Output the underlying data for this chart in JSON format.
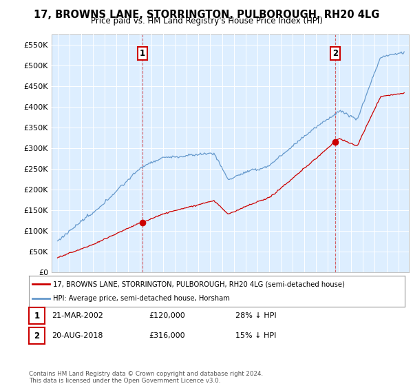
{
  "title": "17, BROWNS LANE, STORRINGTON, PULBOROUGH, RH20 4LG",
  "subtitle": "Price paid vs. HM Land Registry's House Price Index (HPI)",
  "legend_line1": "17, BROWNS LANE, STORRINGTON, PULBOROUGH, RH20 4LG (semi-detached house)",
  "legend_line2": "HPI: Average price, semi-detached house, Horsham",
  "annotation1_date": "21-MAR-2002",
  "annotation1_price": "£120,000",
  "annotation1_note": "28% ↓ HPI",
  "annotation2_date": "20-AUG-2018",
  "annotation2_price": "£316,000",
  "annotation2_note": "15% ↓ HPI",
  "footer": "Contains HM Land Registry data © Crown copyright and database right 2024.\nThis data is licensed under the Open Government Licence v3.0.",
  "red_color": "#cc0000",
  "blue_color": "#6699cc",
  "plot_bg_color": "#ddeeff",
  "background_color": "#ffffff",
  "grid_color": "#ffffff",
  "ylim": [
    0,
    575000
  ],
  "yticks": [
    0,
    50000,
    100000,
    150000,
    200000,
    250000,
    300000,
    350000,
    400000,
    450000,
    500000,
    550000
  ],
  "ytick_labels": [
    "£0",
    "£50K",
    "£100K",
    "£150K",
    "£200K",
    "£250K",
    "£300K",
    "£350K",
    "£400K",
    "£450K",
    "£500K",
    "£550K"
  ],
  "t_sale1": 2002.22,
  "t_sale2": 2018.63,
  "sale1_price": 120000,
  "sale2_price": 316000
}
